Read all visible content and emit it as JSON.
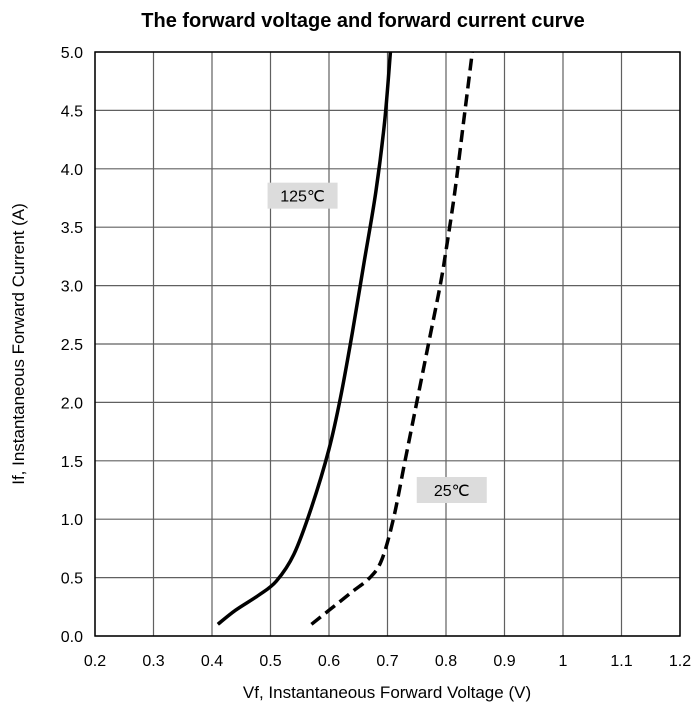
{
  "chart_data": {
    "type": "line",
    "title": "The forward voltage and forward current curve",
    "xlabel": "Vf, Instantaneous Forward Voltage (V)",
    "ylabel": "If, Instantaneous Forward Current (A)",
    "xlim": [
      0.2,
      1.2
    ],
    "ylim": [
      0.0,
      5.0
    ],
    "x_ticks": [
      "0.2",
      "0.3",
      "0.4",
      "0.5",
      "0.6",
      "0.7",
      "0.8",
      "0.9",
      "1",
      "1.1",
      "1.2"
    ],
    "y_ticks": [
      "0.0",
      "0.5",
      "1.0",
      "1.5",
      "2.0",
      "2.5",
      "3.0",
      "3.5",
      "4.0",
      "4.5",
      "5.0"
    ],
    "grid": true,
    "series": [
      {
        "name": "125℃",
        "style": "solid",
        "color": "#000000",
        "x": [
          0.41,
          0.44,
          0.48,
          0.51,
          0.54,
          0.57,
          0.6,
          0.62,
          0.64,
          0.66,
          0.68,
          0.695,
          0.705
        ],
        "y": [
          0.1,
          0.22,
          0.35,
          0.47,
          0.7,
          1.1,
          1.6,
          2.05,
          2.6,
          3.2,
          3.8,
          4.4,
          5.0
        ]
      },
      {
        "name": "25℃",
        "style": "dashed",
        "color": "#000000",
        "x": [
          0.57,
          0.6,
          0.64,
          0.67,
          0.69,
          0.71,
          0.73,
          0.75,
          0.77,
          0.79,
          0.8,
          0.815,
          0.83,
          0.845
        ],
        "y": [
          0.1,
          0.22,
          0.38,
          0.5,
          0.65,
          1.0,
          1.5,
          2.0,
          2.5,
          3.0,
          3.3,
          3.8,
          4.4,
          5.0
        ]
      }
    ],
    "annotations": [
      {
        "text": "125℃",
        "series": 0
      },
      {
        "text": "25℃",
        "series": 1
      }
    ]
  }
}
